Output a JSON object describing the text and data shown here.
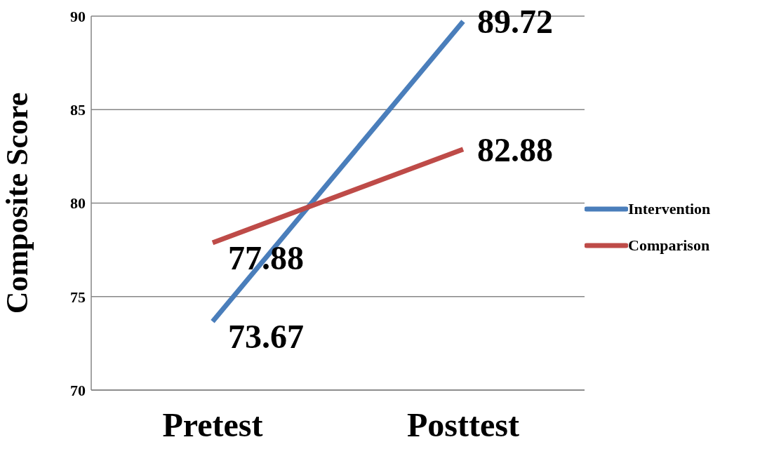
{
  "chart_data": {
    "type": "line",
    "ylabel": "Composite Score",
    "categories": [
      "Pretest",
      "Posttest"
    ],
    "series": [
      {
        "name": "Intervention",
        "color": "#4a7ebb",
        "values": [
          73.67,
          89.72
        ]
      },
      {
        "name": "Comparison",
        "color": "#be4b48",
        "values": [
          77.88,
          82.88
        ]
      }
    ],
    "ylim": [
      70,
      90
    ],
    "yticks": [
      70,
      75,
      80,
      85,
      90
    ],
    "grid": "y",
    "legend": "right",
    "data_labels": true,
    "marker": "none",
    "line_style": "solid"
  }
}
